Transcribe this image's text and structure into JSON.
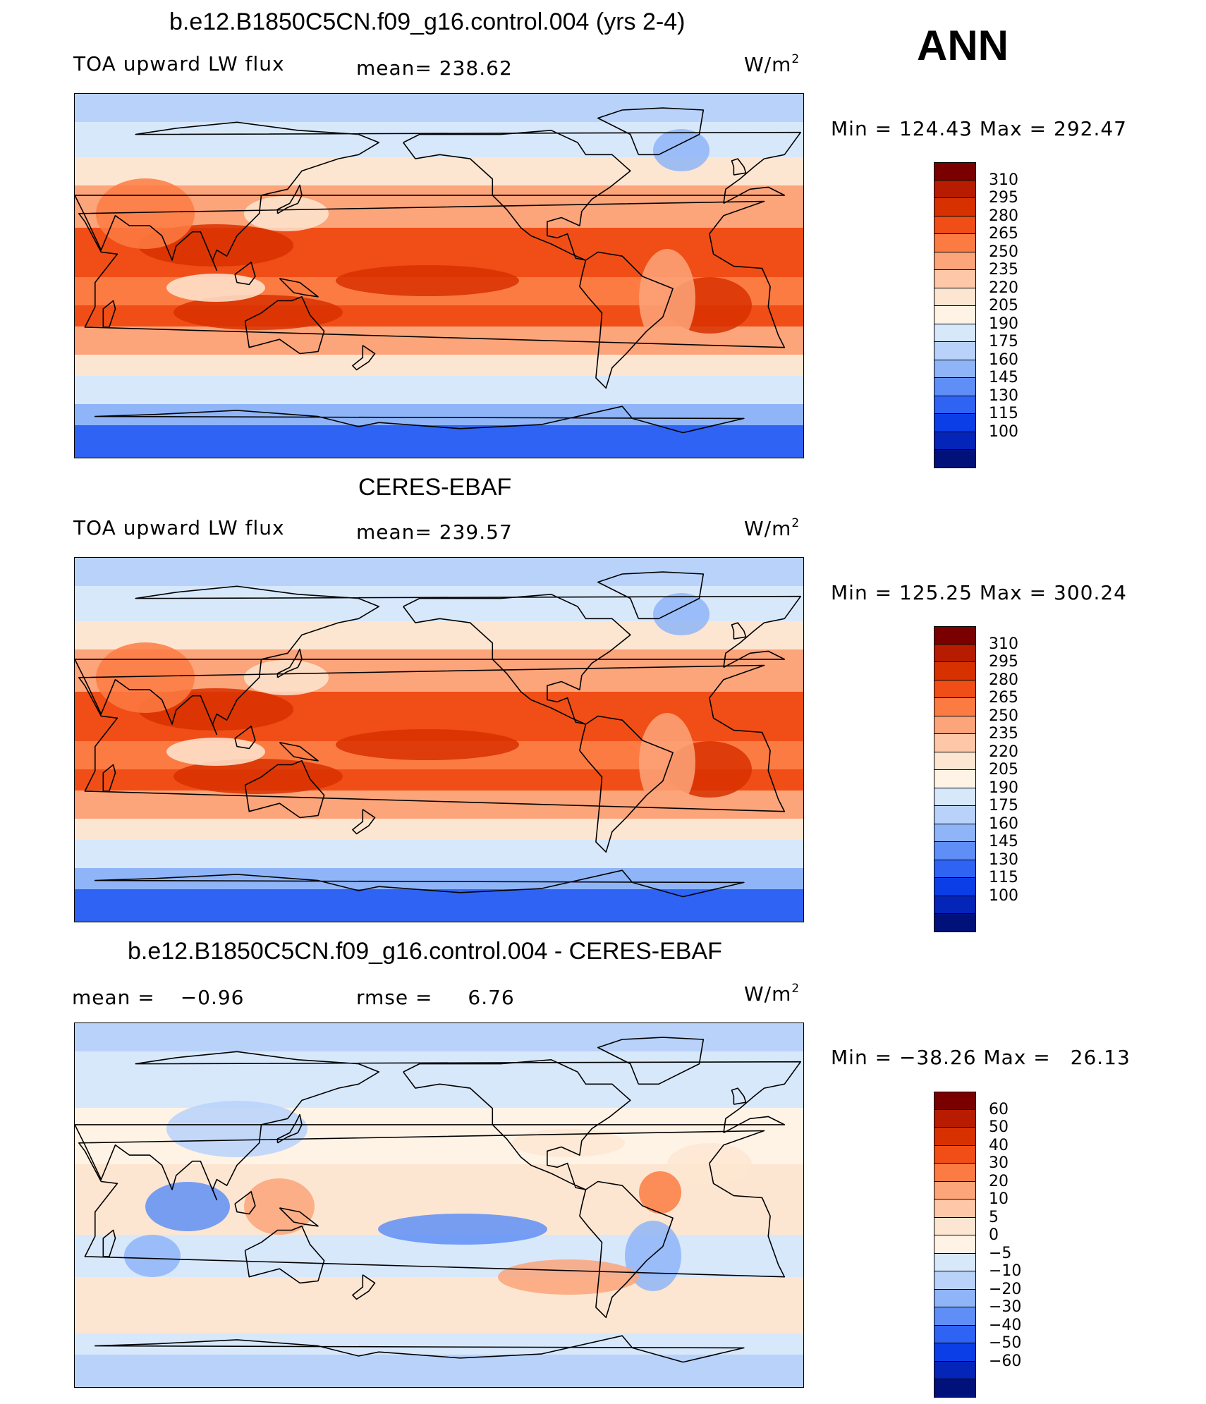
{
  "season": "ANN",
  "panels": [
    {
      "id": "model",
      "title": "b.e12.B1850C5CN.f09_g16.control.004 (yrs 2-4)",
      "left_label": "TOA upward LW flux",
      "stat1_label": "mean=",
      "stat1_value": "238.62",
      "units_base": "W/m",
      "units_sup": "2",
      "min_label": "Min",
      "min_value": "124.43",
      "max_label": "Max",
      "max_value": "292.47",
      "colorbar_labels": [
        "310",
        "295",
        "280",
        "265",
        "250",
        "235",
        "220",
        "205",
        "190",
        "175",
        "160",
        "145",
        "130",
        "115",
        "100"
      ],
      "colorbar_colors": [
        "#7a0000",
        "#b71c00",
        "#d83100",
        "#f04e16",
        "#fb7b43",
        "#fca47a",
        "#fdc7a8",
        "#fde6d1",
        "#fff3e6",
        "#d8e8fb",
        "#b9d2fa",
        "#8fb5f8",
        "#5f8ff6",
        "#2f63f4",
        "#0b3ee6",
        "#0524b8",
        "#00127a"
      ]
    },
    {
      "id": "obs",
      "title": "CERES-EBAF",
      "left_label": "TOA upward LW flux",
      "stat1_label": "mean=",
      "stat1_value": "239.57",
      "units_base": "W/m",
      "units_sup": "2",
      "min_label": "Min",
      "min_value": "125.25",
      "max_label": "Max",
      "max_value": "300.24",
      "colorbar_labels": [
        "310",
        "295",
        "280",
        "265",
        "250",
        "235",
        "220",
        "205",
        "190",
        "175",
        "160",
        "145",
        "130",
        "115",
        "100"
      ],
      "colorbar_colors": [
        "#7a0000",
        "#b71c00",
        "#d83100",
        "#f04e16",
        "#fb7b43",
        "#fca47a",
        "#fdc7a8",
        "#fde6d1",
        "#fff3e6",
        "#d8e8fb",
        "#b9d2fa",
        "#8fb5f8",
        "#5f8ff6",
        "#2f63f4",
        "#0b3ee6",
        "#0524b8",
        "#00127a"
      ]
    },
    {
      "id": "diff",
      "title": "b.e12.B1850C5CN.f09_g16.control.004 - CERES-EBAF",
      "left_label": "mean =",
      "left_value": "−0.96",
      "stat1_label": "rmse =",
      "stat1_value": "6.76",
      "units_base": "W/m",
      "units_sup": "2",
      "min_label": "Min",
      "min_value": "−38.26",
      "max_label": "Max",
      "max_value": "26.13",
      "colorbar_labels": [
        "60",
        "50",
        "40",
        "30",
        "20",
        "10",
        "5",
        "0",
        "−5",
        "−10",
        "−20",
        "−30",
        "−40",
        "−50",
        "−60"
      ],
      "colorbar_colors": [
        "#7a0000",
        "#b71c00",
        "#d83100",
        "#f04e16",
        "#fb7b43",
        "#fca47a",
        "#fdc7a8",
        "#fde6d1",
        "#fff3e6",
        "#d8e8fb",
        "#b9d2fa",
        "#8fb5f8",
        "#5f8ff6",
        "#2f63f4",
        "#0b3ee6",
        "#0524b8",
        "#00127a"
      ]
    }
  ]
}
